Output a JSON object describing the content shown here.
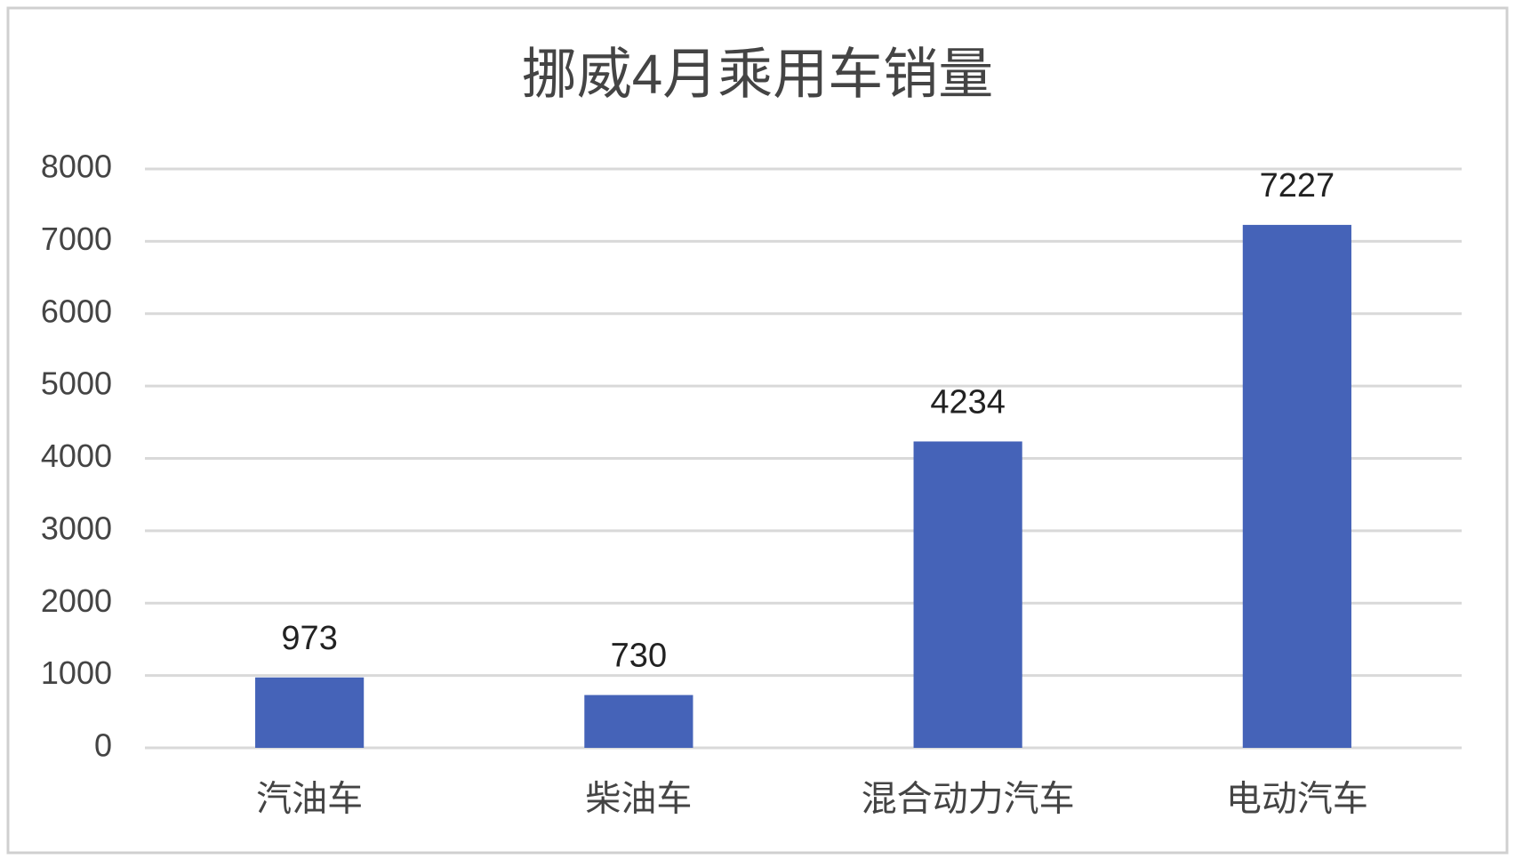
{
  "chart_data": {
    "type": "bar",
    "title": "挪威4月乘用车销量",
    "categories": [
      "汽油车",
      "柴油车",
      "混合动力汽车",
      "电动汽车"
    ],
    "values": [
      973,
      730,
      4234,
      7227
    ],
    "color": "#4563b8",
    "ylim": [
      0,
      8000
    ],
    "yticks": [
      0,
      1000,
      2000,
      3000,
      4000,
      5000,
      6000,
      7000,
      8000
    ],
    "grid": true
  }
}
